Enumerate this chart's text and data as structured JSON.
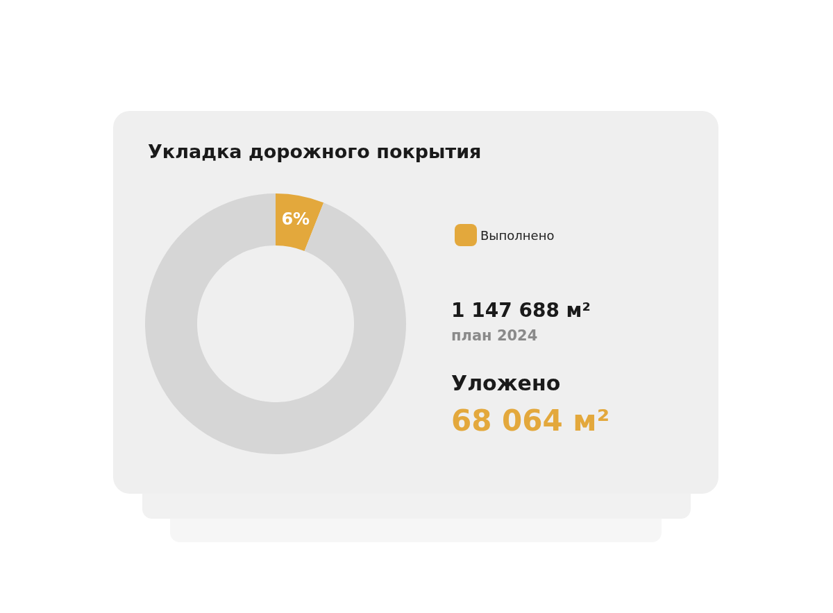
{
  "chart_data": {
    "type": "donut",
    "title": "Укладка дорожного покрытия",
    "categories": [
      "Выполнено",
      null
    ],
    "values": [
      6,
      94
    ],
    "colors": [
      "#e3a83c",
      "#d6d6d6"
    ],
    "value_labels": [
      "6%",
      null
    ],
    "legend": "right",
    "annotations": [
      "1 147 688 м²",
      "план 2024",
      "Уложено",
      "68 064 м²"
    ]
  }
}
